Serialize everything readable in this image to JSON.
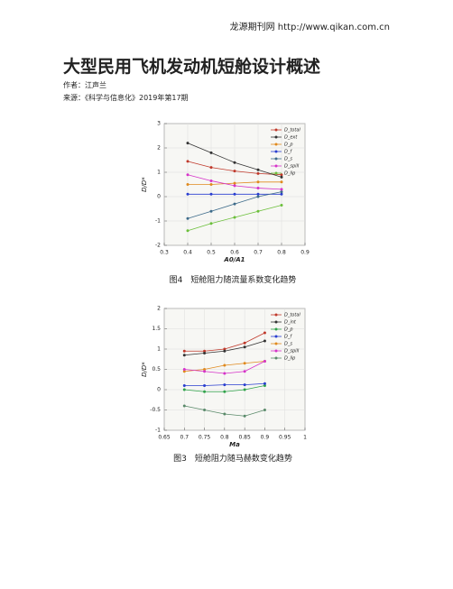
{
  "header": "龙源期刊网 http://www.qikan.com.cn",
  "title": "大型民用飞机发动机短舱设计概述",
  "author": "作者：江声兰",
  "source": "来源：《科学与信息化》2019年第17期",
  "figures": [
    {
      "caption": "图4　短舱阻力随流量系数变化趋势",
      "chart_data": {
        "type": "line",
        "x_label": "A0/A1",
        "y_label": "D/D*",
        "x": [
          0.4,
          0.5,
          0.6,
          0.7,
          0.8
        ],
        "xlim": [
          0.3,
          0.9
        ],
        "xticks": [
          0.3,
          0.4,
          0.5,
          0.6,
          0.7,
          0.8,
          0.9
        ],
        "ylim": [
          -2,
          3
        ],
        "yticks": [
          -2,
          -1,
          0,
          1,
          2,
          3
        ],
        "grid": true,
        "legend": "top-right",
        "series": [
          {
            "name": "D_total",
            "color": "#c0392b",
            "values": [
              1.45,
              1.2,
              1.05,
              0.95,
              0.9
            ]
          },
          {
            "name": "D_ext",
            "color": "#333333",
            "values": [
              2.2,
              1.8,
              1.4,
              1.1,
              0.8
            ]
          },
          {
            "name": "D_p",
            "color": "#e08a1e",
            "values": [
              0.5,
              0.5,
              0.55,
              0.6,
              0.6
            ]
          },
          {
            "name": "D_f",
            "color": "#2a3fd0",
            "values": [
              0.1,
              0.1,
              0.1,
              0.1,
              0.1
            ]
          },
          {
            "name": "D_s",
            "color": "#3d6b8a",
            "values": [
              -0.9,
              -0.6,
              -0.3,
              0,
              0.2
            ]
          },
          {
            "name": "D_spill",
            "color": "#d633c9",
            "values": [
              0.9,
              0.65,
              0.45,
              0.35,
              0.3
            ]
          },
          {
            "name": "D_lip",
            "color": "#6bbf3a",
            "values": [
              -1.4,
              -1.1,
              -0.85,
              -0.6,
              -0.35
            ]
          }
        ]
      }
    },
    {
      "caption": "图3　短舱阻力随马赫数变化趋势",
      "chart_data": {
        "type": "line",
        "x_label": "Ma",
        "y_label": "D/D*",
        "x": [
          0.7,
          0.75,
          0.8,
          0.85,
          0.9
        ],
        "xlim": [
          0.65,
          1
        ],
        "xticks": [
          0.65,
          0.7,
          0.75,
          0.8,
          0.85,
          0.9,
          0.95,
          1
        ],
        "ylim": [
          -1,
          2
        ],
        "yticks": [
          -1,
          -0.5,
          0,
          0.5,
          1,
          1.5,
          2
        ],
        "grid": true,
        "legend": "top-right",
        "series": [
          {
            "name": "D_total",
            "color": "#c0392b",
            "values": [
              0.95,
              0.95,
              1.0,
              1.15,
              1.4
            ]
          },
          {
            "name": "D_int",
            "color": "#333333",
            "values": [
              0.85,
              0.9,
              0.95,
              1.05,
              1.2
            ]
          },
          {
            "name": "D_p",
            "color": "#2fa34a",
            "values": [
              0,
              -0.05,
              -0.05,
              0,
              0.1
            ]
          },
          {
            "name": "D_f",
            "color": "#2a3fd0",
            "values": [
              0.1,
              0.1,
              0.12,
              0.12,
              0.15
            ]
          },
          {
            "name": "D_s",
            "color": "#e08a1e",
            "values": [
              0.45,
              0.5,
              0.6,
              0.65,
              0.7
            ]
          },
          {
            "name": "D_spill",
            "color": "#d633c9",
            "values": [
              0.5,
              0.45,
              0.4,
              0.45,
              0.7
            ]
          },
          {
            "name": "D_lip",
            "color": "#5a8a6a",
            "values": [
              -0.4,
              -0.5,
              -0.6,
              -0.65,
              -0.5
            ]
          }
        ]
      }
    }
  ]
}
